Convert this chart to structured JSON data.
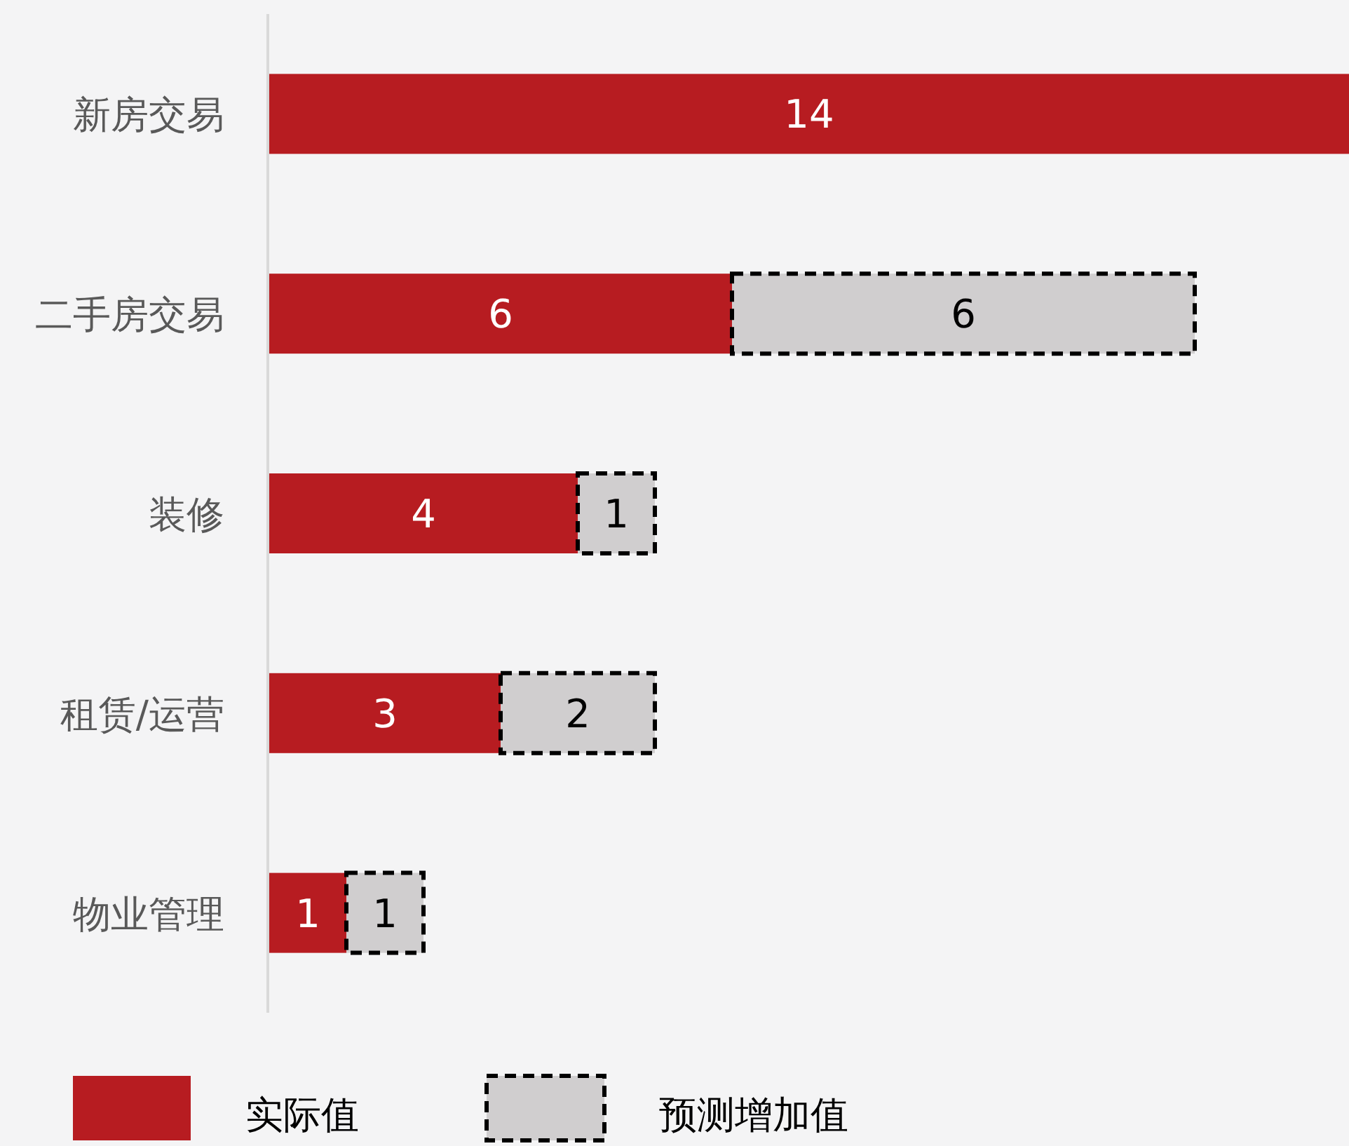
{
  "chart_data": {
    "type": "bar",
    "orientation": "horizontal",
    "stacked": true,
    "categories": [
      "新房交易",
      "二手房交易",
      "装修",
      "租赁/运营",
      "物业管理"
    ],
    "series": [
      {
        "name": "实际值",
        "color": "#b71c21",
        "values": [
          14,
          6,
          4,
          3,
          1
        ]
      },
      {
        "name": "预测增加值",
        "color": "#d0cecf",
        "line_style": "dashed",
        "values": [
          null,
          6,
          1,
          2,
          1
        ]
      }
    ],
    "xlim": [
      0,
      14
    ],
    "tick_labels": "y",
    "data_labels": true,
    "legend": "bottom"
  }
}
